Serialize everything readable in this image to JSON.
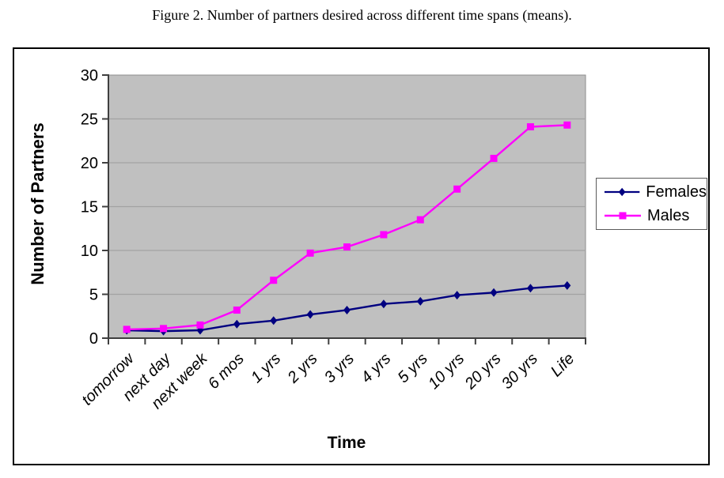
{
  "title": "Figure 2. Number of partners desired across different time spans (means).",
  "chart_data": {
    "type": "line",
    "categories": [
      "tomorrow",
      "next day",
      "next week",
      "6 mos",
      "1 yrs",
      "2 yrs",
      "3 yrs",
      "4 yrs",
      "5 yrs",
      "10 yrs",
      "20 yrs",
      "30 yrs",
      "Life"
    ],
    "series": [
      {
        "name": "Females",
        "color": "#000080",
        "marker": "diamond",
        "values": [
          0.9,
          0.8,
          0.9,
          1.6,
          2.0,
          2.7,
          3.2,
          3.9,
          4.2,
          4.9,
          5.2,
          5.7,
          6.0
        ]
      },
      {
        "name": "Males",
        "color": "#ff00ff",
        "marker": "square",
        "values": [
          1.0,
          1.1,
          1.5,
          3.2,
          6.6,
          9.7,
          10.4,
          11.8,
          13.5,
          17.0,
          20.5,
          24.1,
          24.3
        ]
      }
    ],
    "xlabel": "Time",
    "ylabel": "Number of Partners",
    "ylim": [
      0,
      30
    ],
    "ytick_step": 5,
    "yticks": [
      0,
      5,
      10,
      15,
      20,
      25,
      30
    ],
    "grid": true,
    "legend_position": "right",
    "plot_bg": "#c0c0c0",
    "grid_color": "#a2a2a2",
    "axis_color": "#3f3f3f",
    "tick_label_color": "#000000"
  }
}
